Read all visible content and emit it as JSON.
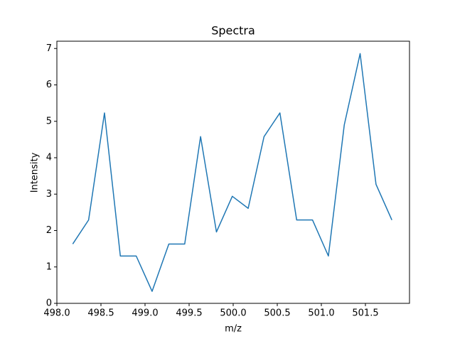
{
  "chart_data": {
    "type": "line",
    "title": "Spectra",
    "x_label": "m/z",
    "y_label": "Intensity",
    "x": [
      498.18,
      498.36,
      498.54,
      498.72,
      498.9,
      499.08,
      499.27,
      499.45,
      499.63,
      499.81,
      499.99,
      500.17,
      500.35,
      500.53,
      500.72,
      500.9,
      501.08,
      501.26,
      501.44,
      501.62,
      501.8
    ],
    "series": [
      {
        "name": "Spectra",
        "color": "#1f77b4",
        "values": [
          1.63,
          2.29,
          5.23,
          1.3,
          1.3,
          0.33,
          1.63,
          1.63,
          4.58,
          1.96,
          2.94,
          2.61,
          4.58,
          5.23,
          2.29,
          2.29,
          1.3,
          4.9,
          6.86,
          3.27,
          2.29
        ]
      }
    ],
    "xlim": [
      498.0,
      502.0
    ],
    "xticks": [
      {
        "value": 498,
        "label": "498.0"
      },
      {
        "value": 498.5,
        "label": "498.5"
      },
      {
        "value": 499,
        "label": "499.0"
      },
      {
        "value": 499.5,
        "label": "499.5"
      },
      {
        "value": 500,
        "label": "500.0"
      },
      {
        "value": 500.5,
        "label": "500.5"
      },
      {
        "value": 501,
        "label": "501.0"
      },
      {
        "value": 501.5,
        "label": "501.5"
      }
    ],
    "ylim": [
      0,
      7.2
    ],
    "yticks": [
      0,
      1,
      2,
      3,
      4,
      5,
      6,
      7
    ],
    "grid": false
  }
}
